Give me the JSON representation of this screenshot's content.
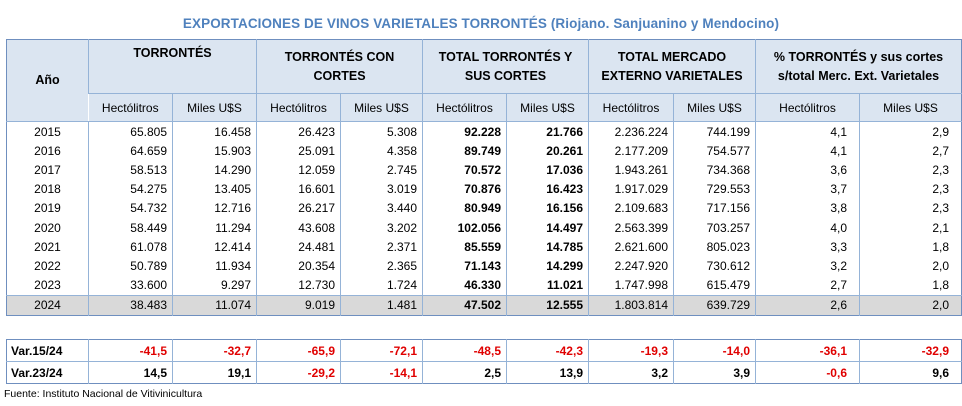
{
  "title": "EXPORTACIONES DE VINOS VARIETALES TORRONTÉS (Riojano. Sanjuanino y Mendocino)",
  "headers": {
    "year": "Año",
    "groups": [
      {
        "line1": "TORRONTÉS",
        "line2": ""
      },
      {
        "line1": "TORRONTÉS  CON",
        "line2": "CORTES"
      },
      {
        "line1": "TOTAL  TORRONTÉS  Y",
        "line2": "SUS CORTES"
      },
      {
        "line1": "TOTAL  MERCADO",
        "line2": "EXTERNO  VARIETALES"
      },
      {
        "line1": "% TORRONTÉS y sus cortes",
        "line2": "s/total  Merc. Ext. Varietales"
      }
    ],
    "sub": [
      "Hectólitros",
      "Miles U$S",
      "Hectólitros",
      "Miles U$S",
      "Hectólitros",
      "Miles U$S",
      "Hectólitros",
      "Miles U$S",
      "Hectólitros",
      "Miles U$S"
    ]
  },
  "rows": [
    [
      "2015",
      "65.805",
      "16.458",
      "26.423",
      "5.308",
      "92.228",
      "21.766",
      "2.236.224",
      "744.199",
      "4,1",
      "2,9"
    ],
    [
      "2016",
      "64.659",
      "15.903",
      "25.091",
      "4.358",
      "89.749",
      "20.261",
      "2.177.209",
      "754.577",
      "4,1",
      "2,7"
    ],
    [
      "2017",
      "58.513",
      "14.290",
      "12.059",
      "2.745",
      "70.572",
      "17.036",
      "1.943.261",
      "734.368",
      "3,6",
      "2,3"
    ],
    [
      "2018",
      "54.275",
      "13.405",
      "16.601",
      "3.019",
      "70.876",
      "16.423",
      "1.917.029",
      "729.553",
      "3,7",
      "2,3"
    ],
    [
      "2019",
      "54.732",
      "12.716",
      "26.217",
      "3.440",
      "80.949",
      "16.156",
      "2.109.683",
      "717.156",
      "3,8",
      "2,3"
    ],
    [
      "2020",
      "58.449",
      "11.294",
      "43.608",
      "3.202",
      "102.056",
      "14.497",
      "2.563.399",
      "703.257",
      "4,0",
      "2,1"
    ],
    [
      "2021",
      "61.078",
      "12.414",
      "24.481",
      "2.371",
      "85.559",
      "14.785",
      "2.621.600",
      "805.023",
      "3,3",
      "1,8"
    ],
    [
      "2022",
      "50.789",
      "11.934",
      "20.354",
      "2.365",
      "71.143",
      "14.299",
      "2.247.920",
      "730.612",
      "3,2",
      "2,0"
    ],
    [
      "2023",
      "33.600",
      "9.297",
      "12.730",
      "1.724",
      "46.330",
      "11.021",
      "1.747.998",
      "615.479",
      "2,7",
      "1,8"
    ],
    [
      "2024",
      "38.483",
      "11.074",
      "9.019",
      "1.481",
      "47.502",
      "12.555",
      "1.803.814",
      "639.729",
      "2,6",
      "2,0"
    ]
  ],
  "variations": [
    [
      "Var.15/24",
      "-41,5",
      "-32,7",
      "-65,9",
      "-72,1",
      "-48,5",
      "-42,3",
      "-19,3",
      "-14,0",
      "-36,1",
      "-32,9"
    ],
    [
      "Var.23/24",
      "14,5",
      "19,1",
      "-29,2",
      "-14,1",
      "2,5",
      "13,9",
      "3,2",
      "3,9",
      "-0,6",
      "9,6"
    ]
  ],
  "source": "Fuente: Instituto  Nacional  de  Vitivinicultura"
}
